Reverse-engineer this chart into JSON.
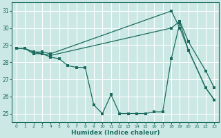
{
  "xlabel": "Humidex (Indice chaleur)",
  "bg_color": "#cce8e4",
  "grid_color": "#ffffff",
  "line_color": "#1a6b5e",
  "xlim": [
    -0.5,
    23.5
  ],
  "ylim": [
    24.5,
    31.5
  ],
  "yticks": [
    25,
    26,
    27,
    28,
    29,
    30,
    31
  ],
  "xticks": [
    0,
    1,
    2,
    3,
    4,
    5,
    6,
    7,
    8,
    9,
    10,
    11,
    12,
    13,
    14,
    15,
    16,
    17,
    18,
    19,
    20,
    21,
    22,
    23
  ],
  "line1_x": [
    0,
    1,
    2,
    3,
    4,
    5,
    6,
    7,
    8,
    9,
    10,
    11,
    12,
    13,
    14,
    15,
    16,
    17,
    18,
    19,
    20,
    22,
    23
  ],
  "line1_y": [
    28.8,
    28.8,
    28.5,
    28.5,
    28.3,
    28.2,
    27.8,
    27.7,
    27.7,
    25.5,
    25.0,
    26.1,
    25.0,
    25.0,
    25.0,
    25.0,
    25.1,
    25.1,
    28.2,
    30.3,
    28.7,
    26.5,
    25.8
  ],
  "line2_x": [
    0,
    1,
    2,
    3,
    4,
    18,
    19,
    20,
    22,
    23
  ],
  "line2_y": [
    28.8,
    28.8,
    28.6,
    28.6,
    28.5,
    31.0,
    30.0,
    28.7,
    26.5,
    25.8
  ],
  "line3_x": [
    0,
    1,
    2,
    3,
    4,
    18,
    19,
    20,
    22,
    23
  ],
  "line3_y": [
    28.8,
    28.8,
    28.6,
    28.5,
    28.4,
    30.0,
    30.4,
    29.2,
    27.5,
    26.5
  ]
}
